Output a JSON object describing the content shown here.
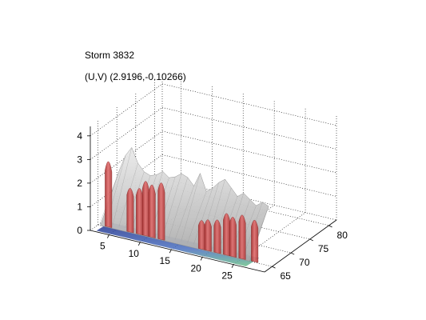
{
  "figure": {
    "title_line1": "Storm 3832",
    "title_line2": "(U,V) (2.9196,-0.10266)"
  },
  "chart_data": {
    "type": "3d-surface",
    "title": [
      "Storm 3832",
      "(U,V) (2.9196,-0.10266)"
    ],
    "xlabel": "",
    "ylabel": "",
    "zlabel": "",
    "x_ticks": [
      5,
      10,
      15,
      20,
      25
    ],
    "y_ticks": [
      65,
      70,
      75,
      80
    ],
    "z_ticks": [
      0,
      1,
      2,
      3,
      4
    ],
    "xlim": [
      2,
      30
    ],
    "ylim": [
      63,
      82
    ],
    "zlim": [
      0,
      4.4
    ],
    "grid": true,
    "series": [
      {
        "kind": "surface",
        "color": "#c8c8c8",
        "x": [
          3,
          4,
          5,
          6,
          7,
          8,
          9,
          10,
          11,
          12,
          13,
          14,
          15,
          16,
          17,
          18,
          19,
          20,
          21,
          22,
          23,
          24,
          25,
          26,
          27
        ],
        "z_back": [
          1.9,
          2.6,
          3.0,
          2.4,
          2.1,
          2.0,
          2.1,
          2.3,
          2.1,
          2.2,
          2.4,
          2.3,
          2.0,
          2.6,
          1.9,
          2.1,
          2.4,
          2.6,
          2.3,
          2.0,
          2.2,
          2.0,
          1.8,
          2.0,
          1.9
        ]
      },
      {
        "kind": "isosurface",
        "color": "#c84848",
        "peaks": [
          {
            "x": 4.0,
            "y": 64.5,
            "z": 3.0
          },
          {
            "x": 7.5,
            "y": 64.5,
            "z": 2.0
          },
          {
            "x": 9.0,
            "y": 64.5,
            "z": 2.1
          },
          {
            "x": 10.0,
            "y": 64.5,
            "z": 2.5
          },
          {
            "x": 11.0,
            "y": 64.5,
            "z": 2.4
          },
          {
            "x": 12.5,
            "y": 64.5,
            "z": 2.6
          },
          {
            "x": 19.0,
            "y": 64.5,
            "z": 1.3
          },
          {
            "x": 20.0,
            "y": 64.5,
            "z": 1.4
          },
          {
            "x": 21.5,
            "y": 64.5,
            "z": 1.5
          },
          {
            "x": 23.0,
            "y": 64.5,
            "z": 1.9
          },
          {
            "x": 24.0,
            "y": 64.5,
            "z": 1.8
          },
          {
            "x": 25.5,
            "y": 64.5,
            "z": 2.0
          },
          {
            "x": 27.5,
            "y": 64.5,
            "z": 1.9
          }
        ]
      }
    ],
    "colors": {
      "axis": "#000000",
      "grid": "#000000",
      "gray_surface": "#c8c8c8",
      "red_surface": "#c84848",
      "base_blue": "#3a4fa8",
      "base_green": "#5fb07a"
    }
  }
}
